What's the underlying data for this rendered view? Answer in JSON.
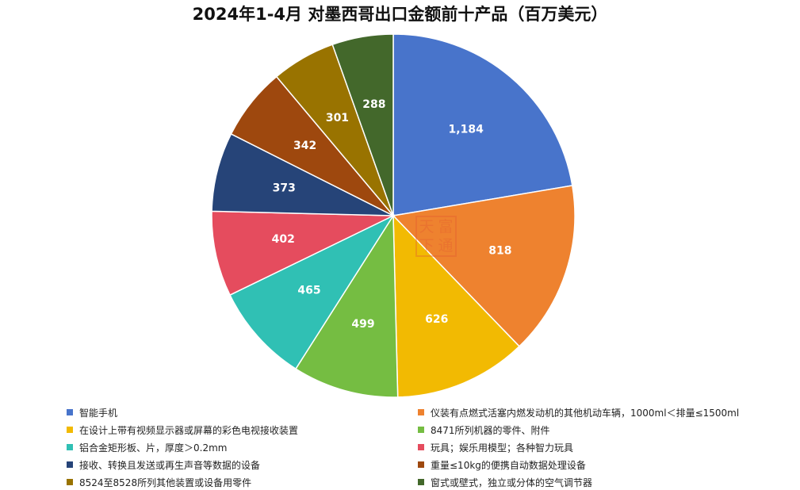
{
  "chart_data": {
    "type": "pie",
    "title": "2024年1-4月 对墨西哥出口金额前十产品（百万美元）",
    "slices": [
      {
        "label": "智能手机",
        "value": 1184,
        "display": "1,184",
        "color": "#4874CB"
      },
      {
        "label": "仪装有点燃式活塞内燃发动机的其他机动车辆，1000ml＜排量≤1500ml",
        "value": 818,
        "display": "818",
        "color": "#EE822F"
      },
      {
        "label": "在设计上带有视频显示器或屏幕的彩色电视接收装置",
        "value": 626,
        "display": "626",
        "color": "#F2BA02"
      },
      {
        "label": "8471所列机器的零件、附件",
        "value": 499,
        "display": "499",
        "color": "#75BD42"
      },
      {
        "label": "铝合金矩形板、片，厚度＞0.2mm",
        "value": 465,
        "display": "465",
        "color": "#30C0B4"
      },
      {
        "label": "玩具；娱乐用模型；各种智力玩具",
        "value": 402,
        "display": "402",
        "color": "#E54C5E"
      },
      {
        "label": "接收、转换且发送或再生声音等数据的设备",
        "value": 373,
        "display": "373",
        "color": "#264478"
      },
      {
        "label": "重量≤10kg的便携自动数据处理设备",
        "value": 342,
        "display": "342",
        "color": "#9E480E"
      },
      {
        "label": "8524至8528所列其他装置或设备用零件",
        "value": 301,
        "display": "301",
        "color": "#997300"
      },
      {
        "label": "窗式或壁式，独立或分体的空气调节器",
        "value": 288,
        "display": "288",
        "color": "#43682B"
      }
    ],
    "legend_position": "bottom"
  },
  "watermark": {
    "chars": [
      "天",
      "富",
      "下",
      "通"
    ]
  }
}
